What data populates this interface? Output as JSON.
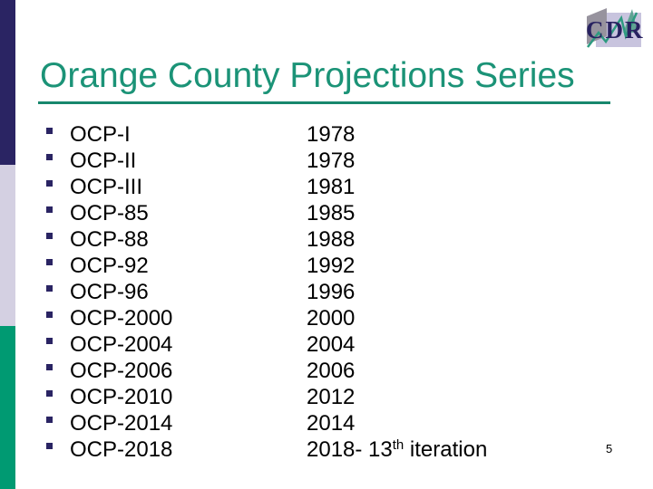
{
  "slide": {
    "title": "Orange County Projections Series",
    "page_number": "5"
  },
  "logo": {
    "text": "CDR"
  },
  "colors": {
    "sidebar_navy": "#2A2463",
    "sidebar_lavender": "#D4D0E2",
    "sidebar_green": "#009A72",
    "title_teal": "#1B9377",
    "underline_teal": "#17876D",
    "bullet_navy": "#2A2463",
    "body_text": "#000000",
    "logo_lavender": "#C8C4DE",
    "logo_gray": "#97939E",
    "logo_line_teal": "#2E9B81",
    "logo_text_navy": "#282260"
  },
  "list": {
    "items": [
      {
        "label": "OCP-I",
        "year_parts": [
          {
            "text": "1978"
          }
        ]
      },
      {
        "label": "OCP-II",
        "year_parts": [
          {
            "text": "1978"
          }
        ]
      },
      {
        "label": "OCP-III",
        "year_parts": [
          {
            "text": "1981"
          }
        ]
      },
      {
        "label": "OCP-85",
        "year_parts": [
          {
            "text": "1985"
          }
        ]
      },
      {
        "label": "OCP-88",
        "year_parts": [
          {
            "text": "1988"
          }
        ]
      },
      {
        "label": "OCP-92",
        "year_parts": [
          {
            "text": "1992"
          }
        ]
      },
      {
        "label": "OCP-96",
        "year_parts": [
          {
            "text": "1996"
          }
        ]
      },
      {
        "label": "OCP-2000",
        "year_parts": [
          {
            "text": "2000"
          }
        ]
      },
      {
        "label": "OCP-2004",
        "year_parts": [
          {
            "text": "2004"
          }
        ]
      },
      {
        "label": "OCP-2006",
        "year_parts": [
          {
            "text": "2006"
          }
        ]
      },
      {
        "label": "OCP-2010",
        "year_parts": [
          {
            "text": "2012"
          }
        ]
      },
      {
        "label": "OCP-2014",
        "year_parts": [
          {
            "text": "2014"
          }
        ]
      },
      {
        "label": "OCP-2018",
        "year_parts": [
          {
            "text": "2018- 13"
          },
          {
            "text": "th",
            "sup": true
          },
          {
            "text": " iteration"
          }
        ]
      }
    ]
  }
}
